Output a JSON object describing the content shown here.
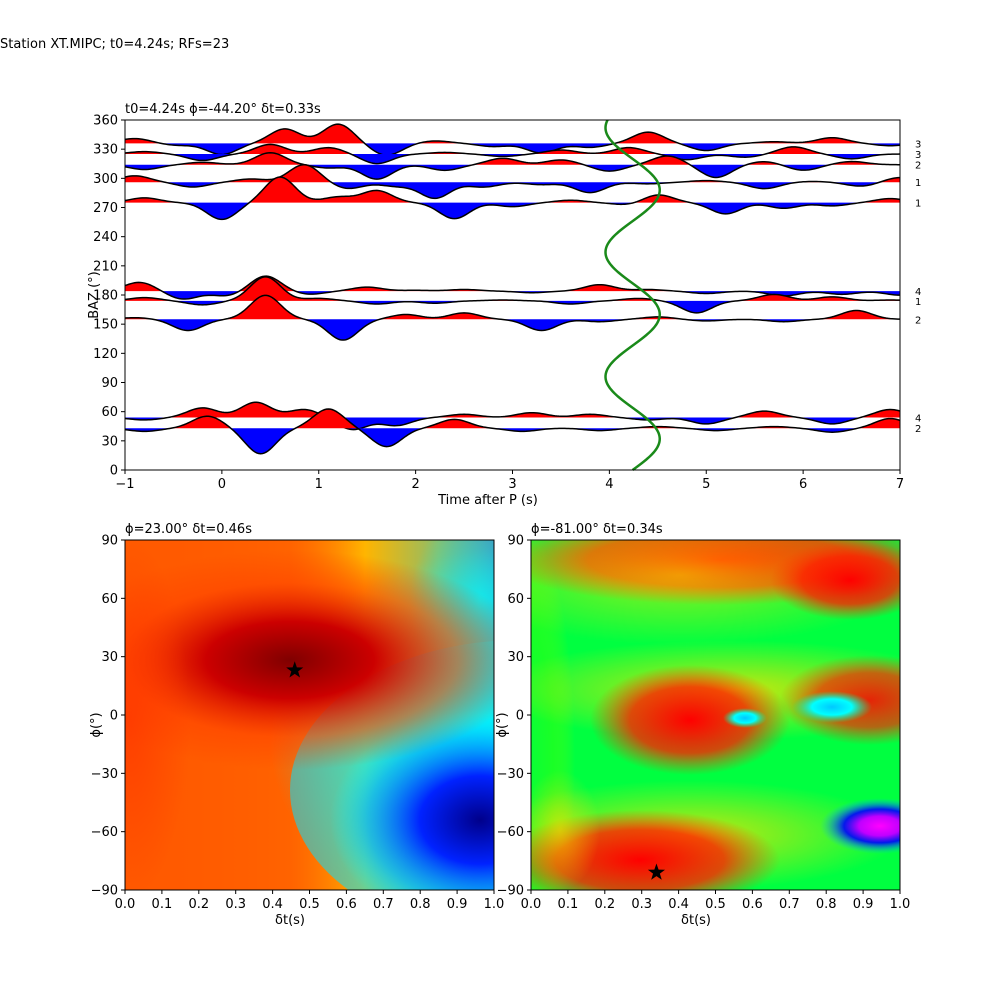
{
  "suptitle": "Station XT.MIPC; t0=4.24s; RFs=23",
  "chart_data": [
    {
      "type": "line",
      "title": "t0=4.24s ϕ=-44.20° δt=0.33s",
      "xlabel": "Time after P (s)",
      "ylabel": "BAZ (°)",
      "xlim": [
        -1,
        7
      ],
      "ylim": [
        0,
        360
      ],
      "xticks": [
        "−1",
        "0",
        "1",
        "2",
        "3",
        "4",
        "5",
        "6",
        "7"
      ],
      "yticks": [
        "0",
        "30",
        "60",
        "90",
        "120",
        "150",
        "180",
        "210",
        "240",
        "270",
        "300",
        "330",
        "360"
      ],
      "fill_colors": {
        "positive": "#ff0000",
        "negative": "#0000ff",
        "curve": "#000000",
        "t0_curve": "#008000"
      },
      "series": [
        {
          "baz": 336,
          "count_label": "3",
          "amplitude_scale": 8,
          "peaks": [
            [
              -0.9,
              0.6
            ],
            [
              -0.45,
              -0.25
            ],
            [
              0,
              -1.4
            ],
            [
              0.65,
              1.8
            ],
            [
              1.2,
              2.4
            ],
            [
              1.7,
              -1.5
            ],
            [
              2.2,
              0.3
            ],
            [
              2.8,
              -0.4
            ],
            [
              3.3,
              -1.2
            ],
            [
              3.8,
              -0.5
            ],
            [
              4.4,
              1.4
            ],
            [
              5.0,
              -0.9
            ],
            [
              5.7,
              0.2
            ],
            [
              6.3,
              0.7
            ],
            [
              6.9,
              -0.3
            ]
          ]
        },
        {
          "baz": 325,
          "count_label": "3",
          "amplitude_scale": 8,
          "peaks": [
            [
              -0.8,
              0.3
            ],
            [
              -0.2,
              -0.8
            ],
            [
              0.5,
              1.2
            ],
            [
              1.1,
              0.8
            ],
            [
              1.6,
              -1.2
            ],
            [
              2.3,
              0.2
            ],
            [
              2.9,
              -0.3
            ],
            [
              3.5,
              0.5
            ],
            [
              4.2,
              0.8
            ],
            [
              4.8,
              -0.7
            ],
            [
              5.4,
              -0.4
            ],
            [
              5.9,
              0.9
            ],
            [
              6.5,
              -0.6
            ]
          ]
        },
        {
          "baz": 314,
          "count_label": "2",
          "amplitude_scale": 8,
          "peaks": [
            [
              -0.8,
              -0.6
            ],
            [
              -0.2,
              0.3
            ],
            [
              0.5,
              1.5
            ],
            [
              1.1,
              -0.4
            ],
            [
              1.6,
              -1.8
            ],
            [
              2.3,
              -0.7
            ],
            [
              2.9,
              0.8
            ],
            [
              3.5,
              0.6
            ],
            [
              4.0,
              -0.8
            ],
            [
              4.6,
              1.1
            ],
            [
              5.1,
              -1.6
            ],
            [
              5.6,
              0.4
            ],
            [
              6.0,
              -0.7
            ],
            [
              6.5,
              0.4
            ]
          ]
        },
        {
          "baz": 296,
          "count_label": "1",
          "amplitude_scale": 8,
          "peaks": [
            [
              -0.9,
              0.8
            ],
            [
              -0.3,
              -0.6
            ],
            [
              0.3,
              0.4
            ],
            [
              0.85,
              2.2
            ],
            [
              1.3,
              -0.8
            ],
            [
              1.8,
              -0.5
            ],
            [
              2.2,
              -2.0
            ],
            [
              2.7,
              -0.6
            ],
            [
              3.3,
              -0.3
            ],
            [
              3.8,
              -1.3
            ],
            [
              4.4,
              -0.2
            ],
            [
              5.0,
              0.2
            ],
            [
              5.6,
              -0.8
            ],
            [
              6.1,
              0.1
            ],
            [
              6.6,
              -0.5
            ],
            [
              7.0,
              0.6
            ]
          ]
        },
        {
          "baz": 275,
          "count_label": "1",
          "amplitude_scale": 8,
          "peaks": [
            [
              -0.8,
              0.6
            ],
            [
              0,
              -2.1
            ],
            [
              0.6,
              3.2
            ],
            [
              1.2,
              0.7
            ],
            [
              1.6,
              1.5
            ],
            [
              2.4,
              -2.0
            ],
            [
              3.0,
              -0.5
            ],
            [
              3.6,
              0.3
            ],
            [
              4.2,
              -0.3
            ],
            [
              4.5,
              1.0
            ],
            [
              5.2,
              -1.4
            ],
            [
              5.8,
              -0.7
            ],
            [
              6.3,
              -0.4
            ],
            [
              6.9,
              0.5
            ]
          ]
        },
        {
          "baz": 184,
          "count_label": "4",
          "amplitude_scale": 8,
          "peaks": [
            [
              -0.85,
              1.1
            ],
            [
              -0.4,
              -1.0
            ],
            [
              0.05,
              -0.6
            ],
            [
              0.45,
              1.9
            ],
            [
              0.9,
              -0.4
            ],
            [
              1.5,
              0.5
            ],
            [
              2.0,
              0.1
            ],
            [
              2.5,
              0.2
            ],
            [
              3.2,
              -0.2
            ],
            [
              3.9,
              0.8
            ],
            [
              4.4,
              0.2
            ],
            [
              5.0,
              -0.3
            ],
            [
              5.8,
              -0.6
            ],
            [
              6.4,
              -0.4
            ],
            [
              7.0,
              -0.5
            ]
          ]
        },
        {
          "baz": 174,
          "count_label": "1",
          "amplitude_scale": 8,
          "peaks": [
            [
              -0.8,
              0.4
            ],
            [
              -0.2,
              -0.5
            ],
            [
              0.45,
              3.0
            ],
            [
              1.0,
              0.3
            ],
            [
              1.6,
              -0.4
            ],
            [
              2.2,
              -0.3
            ],
            [
              2.9,
              0.1
            ],
            [
              3.6,
              -0.4
            ],
            [
              4.3,
              0.3
            ],
            [
              4.9,
              -1.5
            ],
            [
              5.7,
              0.8
            ],
            [
              6.3,
              0.5
            ],
            [
              6.9,
              0.1
            ]
          ]
        },
        {
          "baz": 155,
          "count_label": "2",
          "amplitude_scale": 8,
          "peaks": [
            [
              -0.9,
              0.2
            ],
            [
              -0.35,
              -1.4
            ],
            [
              0.45,
              3.0
            ],
            [
              1.25,
              -2.6
            ],
            [
              1.9,
              0.6
            ],
            [
              2.5,
              0.8
            ],
            [
              3.3,
              -1.4
            ],
            [
              3.9,
              -0.3
            ],
            [
              4.5,
              0.3
            ],
            [
              5.0,
              -0.2
            ],
            [
              5.8,
              -0.3
            ],
            [
              6.55,
              1.1
            ],
            [
              7.0,
              0.0
            ]
          ]
        },
        {
          "baz": 54,
          "count_label": "4",
          "amplitude_scale": 8,
          "peaks": [
            [
              -0.8,
              -0.3
            ],
            [
              -0.2,
              1.2
            ],
            [
              0.35,
              1.9
            ],
            [
              0.85,
              1.0
            ],
            [
              1.35,
              -1.5
            ],
            [
              1.8,
              -1.0
            ],
            [
              2.5,
              0.4
            ],
            [
              3.2,
              0.6
            ],
            [
              3.8,
              0.4
            ],
            [
              4.4,
              -0.3
            ],
            [
              5.0,
              -0.8
            ],
            [
              5.6,
              0.8
            ],
            [
              6.3,
              -0.8
            ],
            [
              6.9,
              1.0
            ]
          ]
        },
        {
          "baz": 43,
          "count_label": "2",
          "amplitude_scale": 8,
          "peaks": [
            [
              -0.8,
              -0.4
            ],
            [
              -0.15,
              1.5
            ],
            [
              0.4,
              -3.2
            ],
            [
              1.1,
              2.4
            ],
            [
              1.7,
              -2.3
            ],
            [
              2.4,
              1.1
            ],
            [
              3.1,
              -0.4
            ],
            [
              3.9,
              -0.3
            ],
            [
              4.5,
              0.2
            ],
            [
              5.1,
              -0.3
            ],
            [
              5.7,
              0.2
            ],
            [
              6.3,
              -0.5
            ],
            [
              6.9,
              1.2
            ]
          ]
        }
      ],
      "t0_curve": {
        "center": 4.24,
        "amplitude": 0.28,
        "period_baz": 128,
        "phase_baz": 0
      }
    },
    {
      "type": "heatmap",
      "title": "ϕ=23.00° δt=0.46s",
      "xlabel": "δt(s)",
      "ylabel": "ϕ(°)",
      "xlim": [
        0,
        1
      ],
      "ylim": [
        -90,
        90
      ],
      "xticks": [
        "0.0",
        "0.1",
        "0.2",
        "0.3",
        "0.4",
        "0.5",
        "0.6",
        "0.7",
        "0.8",
        "0.9",
        "1.0"
      ],
      "yticks": [
        "−90",
        "−60",
        "−30",
        "0",
        "30",
        "60",
        "90"
      ],
      "best": {
        "dt": 0.46,
        "phi": 23
      },
      "colormap": "jet"
    },
    {
      "type": "heatmap",
      "title": "ϕ=-81.00° δt=0.34s",
      "xlabel": "δt(s)",
      "ylabel": "ϕ(°)",
      "xlim": [
        0,
        1
      ],
      "ylim": [
        -90,
        90
      ],
      "xticks": [
        "0.0",
        "0.1",
        "0.2",
        "0.3",
        "0.4",
        "0.5",
        "0.6",
        "0.7",
        "0.8",
        "0.9",
        "1.0"
      ],
      "yticks": [
        "−90",
        "−60",
        "−30",
        "0",
        "30",
        "60",
        "90"
      ],
      "best": {
        "dt": 0.34,
        "phi": -81
      },
      "colormap": "hsv"
    }
  ]
}
